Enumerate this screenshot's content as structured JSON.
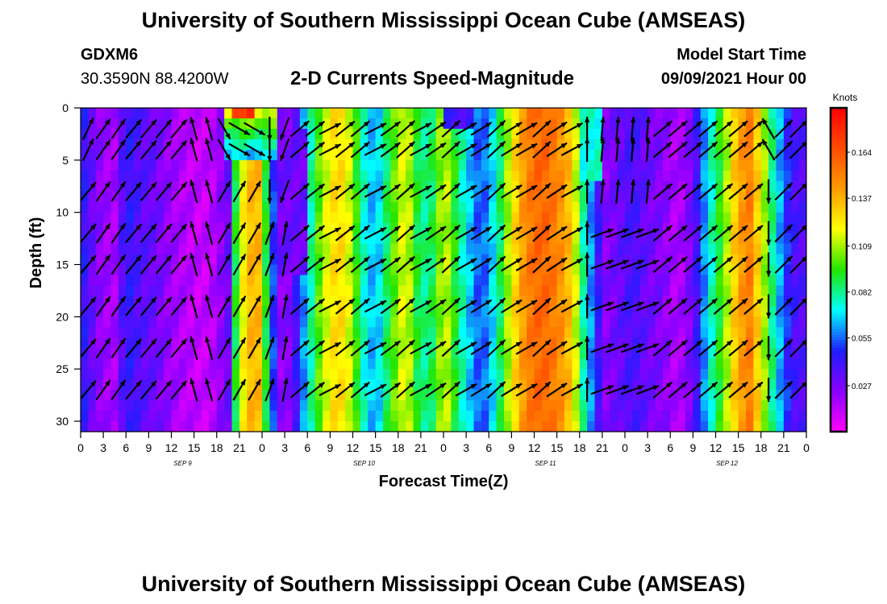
{
  "page": {
    "title_top": "University of Southern Mississippi Ocean Cube (AMSEAS)",
    "title_bottom": "University of Southern Mississippi Ocean Cube (AMSEAS)",
    "station_id": "GDXM6",
    "station_coords": "30.3590N  88.4200W",
    "plot_title": "2-D Currents Speed-Magnitude",
    "model_start_label": "Model Start Time",
    "model_start_value": "09/09/2021 Hour 00"
  },
  "colors": {
    "arrow": "#000000",
    "colorbar": [
      "#ff00ff",
      "#8a00ff",
      "#1e1eff",
      "#00ffff",
      "#22e600",
      "#ffff00",
      "#ff9a00",
      "#ff4b00",
      "#ff0000"
    ]
  },
  "chart_data": {
    "type": "heatmap",
    "title": "2-D Currents Speed-Magnitude",
    "xlabel": "Forecast Time(Z)",
    "ylabel": "Depth (ft)",
    "x_hours_range": [
      0,
      96
    ],
    "ylim": [
      0,
      31
    ],
    "y_ticks": [
      0,
      5,
      10,
      15,
      20,
      25,
      30
    ],
    "x_tick_labels": [
      "0",
      "3",
      "6",
      "9",
      "12",
      "15",
      "18",
      "21",
      "0",
      "3",
      "6",
      "9",
      "12",
      "15",
      "18",
      "21",
      "0",
      "3",
      "6",
      "9",
      "12",
      "15",
      "18",
      "21",
      "0",
      "3",
      "6",
      "9",
      "12",
      "15",
      "18",
      "21",
      "0"
    ],
    "date_labels": [
      {
        "label": "SEP 9",
        "hour": 12
      },
      {
        "label": "SEP 10",
        "hour": 36
      },
      {
        "label": "SEP 11",
        "hour": 60
      },
      {
        "label": "SEP 12",
        "hour": 84
      }
    ],
    "colorbar": {
      "unit": "Knots",
      "range": [
        0.0,
        0.19
      ],
      "ticks": [
        0.027,
        0.055,
        0.082,
        0.109,
        0.137,
        0.164
      ]
    },
    "speed_profile_hours": [
      0,
      1,
      3,
      4.5,
      6,
      8,
      10,
      12,
      14,
      15,
      17,
      19.5,
      20.5,
      22,
      23.5,
      25,
      26,
      27,
      28.5,
      30,
      32,
      34,
      36,
      37,
      39,
      41,
      43,
      45,
      47,
      48,
      49,
      51,
      53,
      55,
      57,
      59,
      61,
      63,
      65,
      66.5,
      68,
      69.5,
      71,
      73,
      75,
      77,
      79,
      81,
      83,
      85,
      87,
      88.5,
      90,
      92,
      94,
      96
    ],
    "speed_profile_knots": [
      0.05,
      0.035,
      0.02,
      0.018,
      0.045,
      0.035,
      0.03,
      0.02,
      0.015,
      0.012,
      0.012,
      0.03,
      0.09,
      0.135,
      0.135,
      0.07,
      0.03,
      0.018,
      0.04,
      0.07,
      0.11,
      0.13,
      0.11,
      0.08,
      0.06,
      0.095,
      0.12,
      0.08,
      0.09,
      0.12,
      0.1,
      0.07,
      0.05,
      0.075,
      0.12,
      0.15,
      0.16,
      0.15,
      0.13,
      0.08,
      0.05,
      0.025,
      0.03,
      0.04,
      0.03,
      0.025,
      0.015,
      0.03,
      0.07,
      0.1,
      0.14,
      0.15,
      0.12,
      0.07,
      0.04,
      0.035
    ],
    "arrow_depths_ft": [
      2,
      4,
      8,
      12,
      15,
      19,
      23,
      27
    ],
    "arrow_hours_every": 2,
    "current_direction_deg_by_segment": [
      {
        "from_hour": 0,
        "to_hour": 20,
        "direction": "N / NNE (with NW near hour 14-19)"
      },
      {
        "from_hour": 20,
        "to_hour": 27,
        "direction": "mixed, SE-S at surface, NE at depth"
      },
      {
        "from_hour": 28,
        "to_hour": 66,
        "direction": "NE"
      },
      {
        "from_hour": 66,
        "to_hour": 78,
        "direction": "ENE / N"
      },
      {
        "from_hour": 78,
        "to_hour": 96,
        "direction": "NE, with S near hour 92"
      }
    ]
  }
}
